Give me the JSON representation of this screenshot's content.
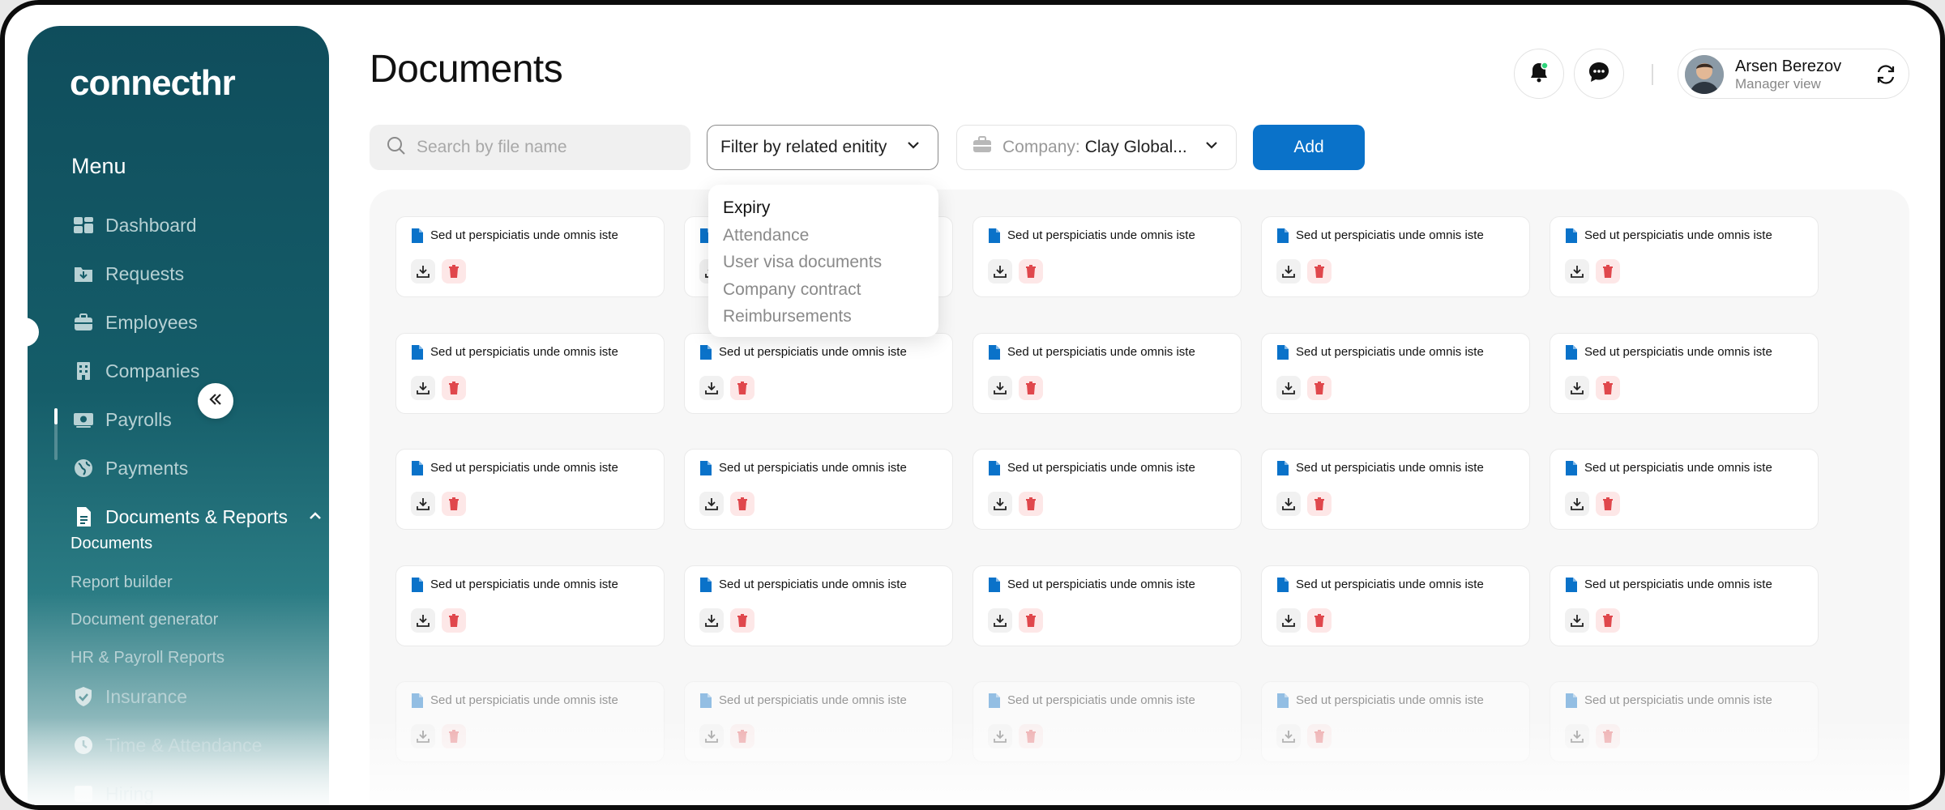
{
  "app": {
    "logo": "connecthr"
  },
  "sidebar": {
    "menu_title": "Menu",
    "items": [
      {
        "label": "Dashboard",
        "icon": "dashboard-icon"
      },
      {
        "label": "Requests",
        "icon": "inbox-icon"
      },
      {
        "label": "Employees",
        "icon": "briefcase-icon"
      },
      {
        "label": "Companies",
        "icon": "building-icon"
      },
      {
        "label": "Payrolls",
        "icon": "money-icon"
      },
      {
        "label": "Payments",
        "icon": "globe-icon"
      },
      {
        "label": "Documents & Reports",
        "icon": "document-icon"
      },
      {
        "label": "Insurance",
        "icon": "shield-icon"
      },
      {
        "label": "Time & Attendance",
        "icon": "clock-icon"
      },
      {
        "label": "Hiring",
        "icon": "hiring-icon"
      }
    ],
    "subitems": [
      {
        "label": "Documents"
      },
      {
        "label": "Report builder"
      },
      {
        "label": "Document generator"
      },
      {
        "label": "HR & Payroll Reports"
      }
    ]
  },
  "header": {
    "title": "Documents",
    "user": {
      "name": "Arsen Berezov",
      "role": "Manager view"
    }
  },
  "toolbar": {
    "search_placeholder": "Search by file name",
    "filter_label": "Filter by related enitity",
    "company_label": "Company:",
    "company_value": "Clay Global...",
    "add_label": "Add"
  },
  "dropdown": {
    "options": [
      "Expiry",
      "Attendance",
      "User visa documents",
      "Company contract",
      "Reimbursements"
    ],
    "selected": "Expiry"
  },
  "documents": {
    "file_name": "Sed ut perspiciatis unde omnis iste",
    "rows": 5,
    "cols": 5
  },
  "colors": {
    "accent": "#0a72c9",
    "sidebar": "#155d69",
    "delete": "#e0474c"
  }
}
